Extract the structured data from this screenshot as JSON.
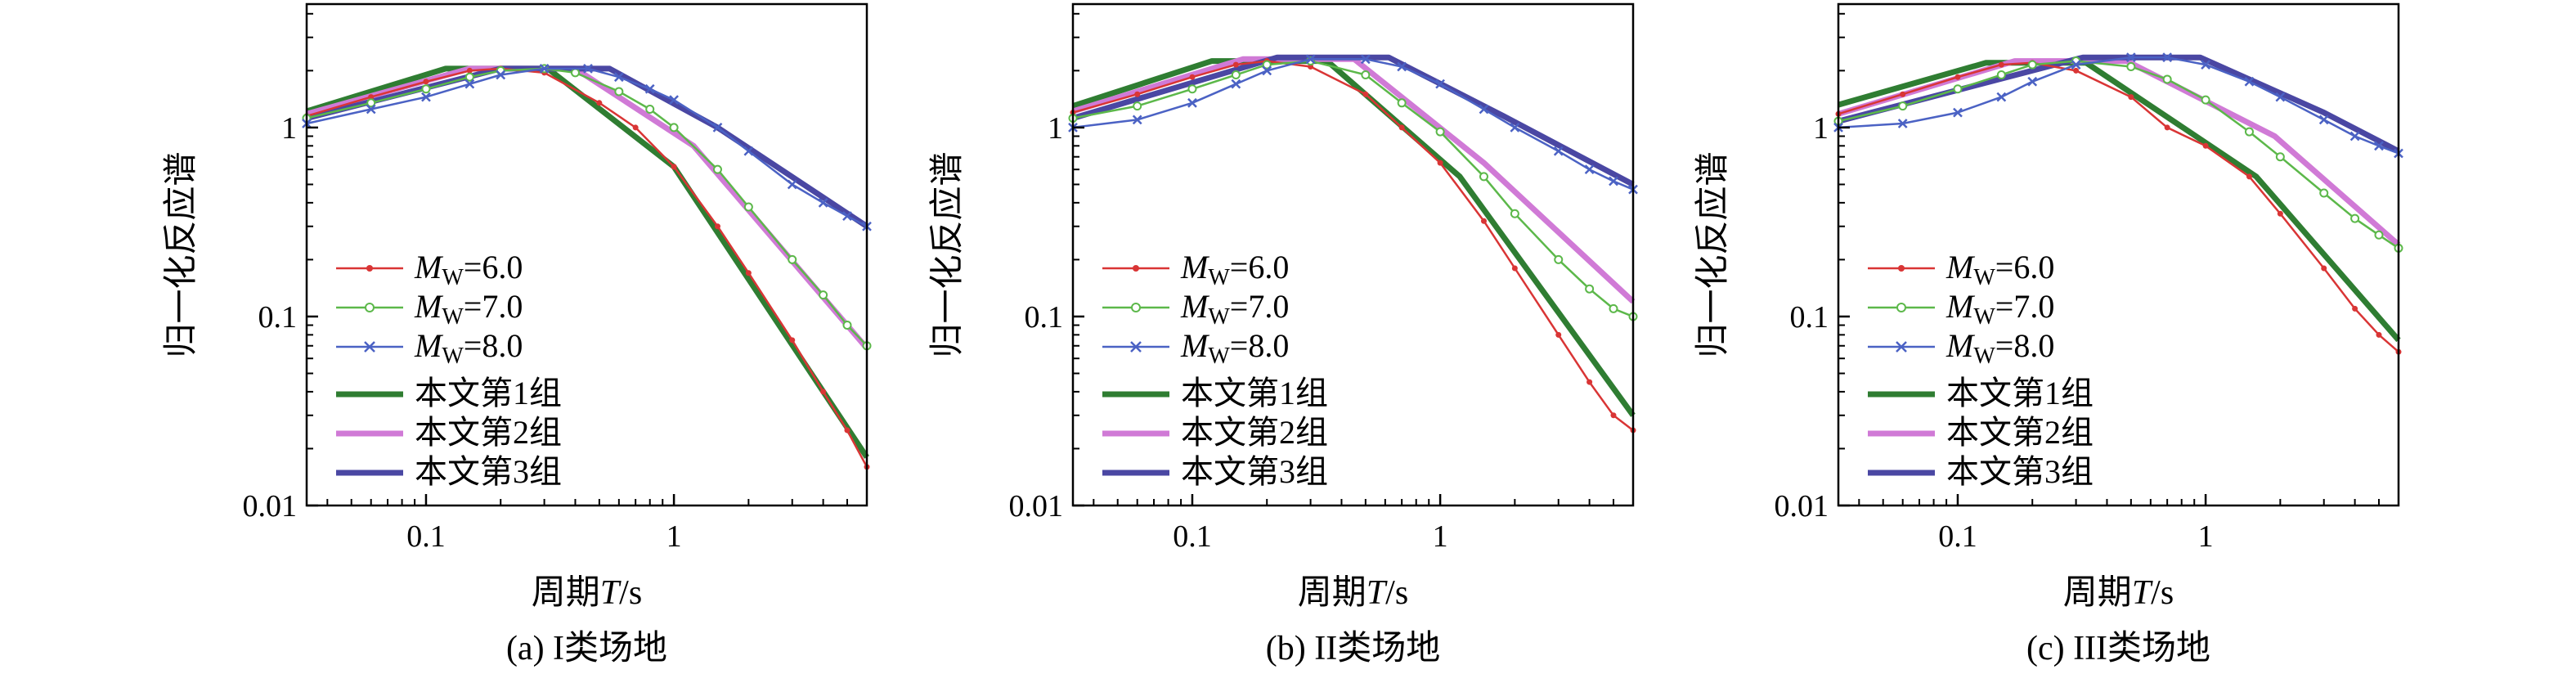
{
  "figure": {
    "panel_count": 3
  },
  "series_styles": [
    {
      "key": "mw6",
      "color": "#d93535",
      "marker": "dot"
    },
    {
      "key": "mw7",
      "color": "#5cb84a",
      "marker": "circle"
    },
    {
      "key": "mw8",
      "color": "#4b62c4",
      "marker": "cross"
    },
    {
      "key": "g1",
      "color": "#2f7d32"
    },
    {
      "key": "g2",
      "color": "#d07ad6"
    },
    {
      "key": "g3",
      "color": "#4a47a3"
    }
  ],
  "legend": {
    "mw_prefix": "M",
    "mw_sub": "W",
    "items": [
      {
        "key": "mw6",
        "value": "=6.0"
      },
      {
        "key": "mw7",
        "value": "=7.0"
      },
      {
        "key": "mw8",
        "value": "=8.0"
      },
      {
        "key": "g1",
        "label": "本文第1组"
      },
      {
        "key": "g2",
        "label": "本文第2组"
      },
      {
        "key": "g3",
        "label": "本文第3组"
      }
    ]
  },
  "chart_data": [
    {
      "type": "line",
      "caption": "(a) I类场地",
      "ylabel": "归一化反应谱",
      "xlabel_prefix": "周期",
      "xlabel_var": "T",
      "xlabel_unit": "/s",
      "x_scale": "log",
      "y_scale": "log",
      "xlim": [
        0.033,
        6
      ],
      "ylim": [
        0.01,
        4.5
      ],
      "x_ticks": [
        {
          "v": 0.1,
          "label": "0.1"
        },
        {
          "v": 1,
          "label": "1"
        }
      ],
      "y_ticks": [
        {
          "v": 0.01,
          "label": "0.01"
        },
        {
          "v": 0.1,
          "label": "0.1"
        },
        {
          "v": 1,
          "label": "1"
        }
      ],
      "legend_position": "lower-left",
      "series": [
        {
          "key": "g1",
          "name": "本文第1组",
          "points": [
            [
              0.033,
              1.22
            ],
            [
              0.12,
              2.05
            ],
            [
              0.31,
              2.05
            ],
            [
              1.0,
              0.62
            ],
            [
              6.0,
              0.018
            ]
          ]
        },
        {
          "key": "g2",
          "name": "本文第2组",
          "points": [
            [
              0.033,
              1.18
            ],
            [
              0.15,
              2.05
            ],
            [
              0.4,
              2.05
            ],
            [
              1.2,
              0.8
            ],
            [
              6.0,
              0.068
            ]
          ]
        },
        {
          "key": "g3",
          "name": "本文第3组",
          "points": [
            [
              0.033,
              1.12
            ],
            [
              0.2,
              2.05
            ],
            [
              0.55,
              2.05
            ],
            [
              1.5,
              1.0
            ],
            [
              6.0,
              0.3
            ]
          ]
        },
        {
          "key": "mw6",
          "name": "MW=6.0",
          "points": [
            [
              0.033,
              1.15
            ],
            [
              0.06,
              1.45
            ],
            [
              0.1,
              1.75
            ],
            [
              0.15,
              2.0
            ],
            [
              0.2,
              2.05
            ],
            [
              0.3,
              1.95
            ],
            [
              0.5,
              1.35
            ],
            [
              0.7,
              1.0
            ],
            [
              1.0,
              0.62
            ],
            [
              1.5,
              0.3
            ],
            [
              2.0,
              0.17
            ],
            [
              3.0,
              0.075
            ],
            [
              4.0,
              0.04
            ],
            [
              5.0,
              0.025
            ],
            [
              6.0,
              0.016
            ]
          ]
        },
        {
          "key": "mw7",
          "name": "MW=7.0",
          "points": [
            [
              0.033,
              1.12
            ],
            [
              0.06,
              1.35
            ],
            [
              0.1,
              1.6
            ],
            [
              0.15,
              1.85
            ],
            [
              0.2,
              2.0
            ],
            [
              0.3,
              2.05
            ],
            [
              0.4,
              1.95
            ],
            [
              0.6,
              1.55
            ],
            [
              0.8,
              1.25
            ],
            [
              1.0,
              1.0
            ],
            [
              1.5,
              0.6
            ],
            [
              2.0,
              0.38
            ],
            [
              3.0,
              0.2
            ],
            [
              4.0,
              0.13
            ],
            [
              5.0,
              0.09
            ],
            [
              6.0,
              0.07
            ]
          ]
        },
        {
          "key": "mw8",
          "name": "MW=8.0",
          "points": [
            [
              0.033,
              1.05
            ],
            [
              0.06,
              1.25
            ],
            [
              0.1,
              1.45
            ],
            [
              0.15,
              1.7
            ],
            [
              0.2,
              1.9
            ],
            [
              0.3,
              2.05
            ],
            [
              0.45,
              2.05
            ],
            [
              0.6,
              1.85
            ],
            [
              0.8,
              1.6
            ],
            [
              1.0,
              1.4
            ],
            [
              1.5,
              1.0
            ],
            [
              2.0,
              0.75
            ],
            [
              3.0,
              0.5
            ],
            [
              4.0,
              0.4
            ],
            [
              5.0,
              0.34
            ],
            [
              6.0,
              0.3
            ]
          ]
        }
      ]
    },
    {
      "type": "line",
      "caption": "(b) II类场地",
      "ylabel": "归一化反应谱",
      "xlabel_prefix": "周期",
      "xlabel_var": "T",
      "xlabel_unit": "/s",
      "x_scale": "log",
      "y_scale": "log",
      "xlim": [
        0.033,
        6
      ],
      "ylim": [
        0.01,
        4.5
      ],
      "x_ticks": [
        {
          "v": 0.1,
          "label": "0.1"
        },
        {
          "v": 1,
          "label": "1"
        }
      ],
      "y_ticks": [
        {
          "v": 0.01,
          "label": "0.01"
        },
        {
          "v": 0.1,
          "label": "0.1"
        },
        {
          "v": 1,
          "label": "1"
        }
      ],
      "legend_position": "lower-left",
      "series": [
        {
          "key": "g1",
          "name": "本文第1组",
          "points": [
            [
              0.033,
              1.3
            ],
            [
              0.12,
              2.25
            ],
            [
              0.35,
              2.25
            ],
            [
              1.2,
              0.55
            ],
            [
              6.0,
              0.03
            ]
          ]
        },
        {
          "key": "g2",
          "name": "本文第2组",
          "points": [
            [
              0.033,
              1.22
            ],
            [
              0.16,
              2.3
            ],
            [
              0.45,
              2.3
            ],
            [
              1.5,
              0.65
            ],
            [
              6.0,
              0.12
            ]
          ]
        },
        {
          "key": "g3",
          "name": "本文第3组",
          "points": [
            [
              0.033,
              1.12
            ],
            [
              0.22,
              2.35
            ],
            [
              0.62,
              2.35
            ],
            [
              1.8,
              1.15
            ],
            [
              6.0,
              0.5
            ]
          ]
        },
        {
          "key": "mw6",
          "name": "MW=6.0",
          "points": [
            [
              0.033,
              1.2
            ],
            [
              0.06,
              1.5
            ],
            [
              0.1,
              1.85
            ],
            [
              0.15,
              2.15
            ],
            [
              0.2,
              2.25
            ],
            [
              0.3,
              2.1
            ],
            [
              0.5,
              1.5
            ],
            [
              0.7,
              1.0
            ],
            [
              1.0,
              0.65
            ],
            [
              1.5,
              0.32
            ],
            [
              2.0,
              0.18
            ],
            [
              3.0,
              0.08
            ],
            [
              4.0,
              0.045
            ],
            [
              5.0,
              0.03
            ],
            [
              6.0,
              0.025
            ]
          ]
        },
        {
          "key": "mw7",
          "name": "MW=7.0",
          "points": [
            [
              0.033,
              1.12
            ],
            [
              0.06,
              1.3
            ],
            [
              0.1,
              1.6
            ],
            [
              0.15,
              1.9
            ],
            [
              0.2,
              2.15
            ],
            [
              0.3,
              2.25
            ],
            [
              0.5,
              1.9
            ],
            [
              0.7,
              1.35
            ],
            [
              1.0,
              0.95
            ],
            [
              1.5,
              0.55
            ],
            [
              2.0,
              0.35
            ],
            [
              3.0,
              0.2
            ],
            [
              4.0,
              0.14
            ],
            [
              5.0,
              0.11
            ],
            [
              6.0,
              0.1
            ]
          ]
        },
        {
          "key": "mw8",
          "name": "MW=8.0",
          "points": [
            [
              0.033,
              1.0
            ],
            [
              0.06,
              1.1
            ],
            [
              0.1,
              1.35
            ],
            [
              0.15,
              1.7
            ],
            [
              0.2,
              2.0
            ],
            [
              0.3,
              2.3
            ],
            [
              0.5,
              2.3
            ],
            [
              0.7,
              2.1
            ],
            [
              1.0,
              1.7
            ],
            [
              1.5,
              1.25
            ],
            [
              2.0,
              1.0
            ],
            [
              3.0,
              0.75
            ],
            [
              4.0,
              0.6
            ],
            [
              5.0,
              0.52
            ],
            [
              6.0,
              0.47
            ]
          ]
        }
      ]
    },
    {
      "type": "line",
      "caption": "(c) III类场地",
      "ylabel": "归一化反应谱",
      "xlabel_prefix": "周期",
      "xlabel_var": "T",
      "xlabel_unit": "/s",
      "x_scale": "log",
      "y_scale": "log",
      "xlim": [
        0.033,
        6
      ],
      "ylim": [
        0.01,
        4.5
      ],
      "x_ticks": [
        {
          "v": 0.1,
          "label": "0.1"
        },
        {
          "v": 1,
          "label": "1"
        }
      ],
      "y_ticks": [
        {
          "v": 0.01,
          "label": "0.01"
        },
        {
          "v": 0.1,
          "label": "0.1"
        },
        {
          "v": 1,
          "label": "1"
        }
      ],
      "legend_position": "lower-left",
      "series": [
        {
          "key": "g1",
          "name": "本文第1组",
          "points": [
            [
              0.033,
              1.32
            ],
            [
              0.13,
              2.2
            ],
            [
              0.33,
              2.2
            ],
            [
              1.6,
              0.55
            ],
            [
              6.0,
              0.075
            ]
          ]
        },
        {
          "key": "g2",
          "name": "本文第2组",
          "points": [
            [
              0.033,
              1.18
            ],
            [
              0.17,
              2.25
            ],
            [
              0.48,
              2.25
            ],
            [
              1.9,
              0.9
            ],
            [
              6.0,
              0.24
            ]
          ]
        },
        {
          "key": "g3",
          "name": "本文第3组",
          "points": [
            [
              0.033,
              1.08
            ],
            [
              0.32,
              2.35
            ],
            [
              0.95,
              2.35
            ],
            [
              3.0,
              1.2
            ],
            [
              6.0,
              0.75
            ]
          ]
        },
        {
          "key": "mw6",
          "name": "MW=6.0",
          "points": [
            [
              0.033,
              1.18
            ],
            [
              0.06,
              1.5
            ],
            [
              0.1,
              1.85
            ],
            [
              0.15,
              2.15
            ],
            [
              0.2,
              2.2
            ],
            [
              0.3,
              2.0
            ],
            [
              0.5,
              1.45
            ],
            [
              0.7,
              1.0
            ],
            [
              1.0,
              0.8
            ],
            [
              1.5,
              0.55
            ],
            [
              2.0,
              0.35
            ],
            [
              3.0,
              0.18
            ],
            [
              4.0,
              0.11
            ],
            [
              5.0,
              0.08
            ],
            [
              6.0,
              0.065
            ]
          ]
        },
        {
          "key": "mw7",
          "name": "MW=7.0",
          "points": [
            [
              0.033,
              1.08
            ],
            [
              0.06,
              1.3
            ],
            [
              0.1,
              1.6
            ],
            [
              0.15,
              1.9
            ],
            [
              0.2,
              2.15
            ],
            [
              0.3,
              2.25
            ],
            [
              0.5,
              2.1
            ],
            [
              0.7,
              1.8
            ],
            [
              1.0,
              1.4
            ],
            [
              1.5,
              0.95
            ],
            [
              2.0,
              0.7
            ],
            [
              3.0,
              0.45
            ],
            [
              4.0,
              0.33
            ],
            [
              5.0,
              0.27
            ],
            [
              6.0,
              0.23
            ]
          ]
        },
        {
          "key": "mw8",
          "name": "MW=8.0",
          "points": [
            [
              0.033,
              1.0
            ],
            [
              0.06,
              1.05
            ],
            [
              0.1,
              1.2
            ],
            [
              0.15,
              1.45
            ],
            [
              0.2,
              1.75
            ],
            [
              0.3,
              2.15
            ],
            [
              0.5,
              2.35
            ],
            [
              0.7,
              2.35
            ],
            [
              1.0,
              2.15
            ],
            [
              1.5,
              1.75
            ],
            [
              2.0,
              1.45
            ],
            [
              3.0,
              1.1
            ],
            [
              4.0,
              0.9
            ],
            [
              5.0,
              0.8
            ],
            [
              6.0,
              0.73
            ]
          ]
        }
      ]
    }
  ]
}
